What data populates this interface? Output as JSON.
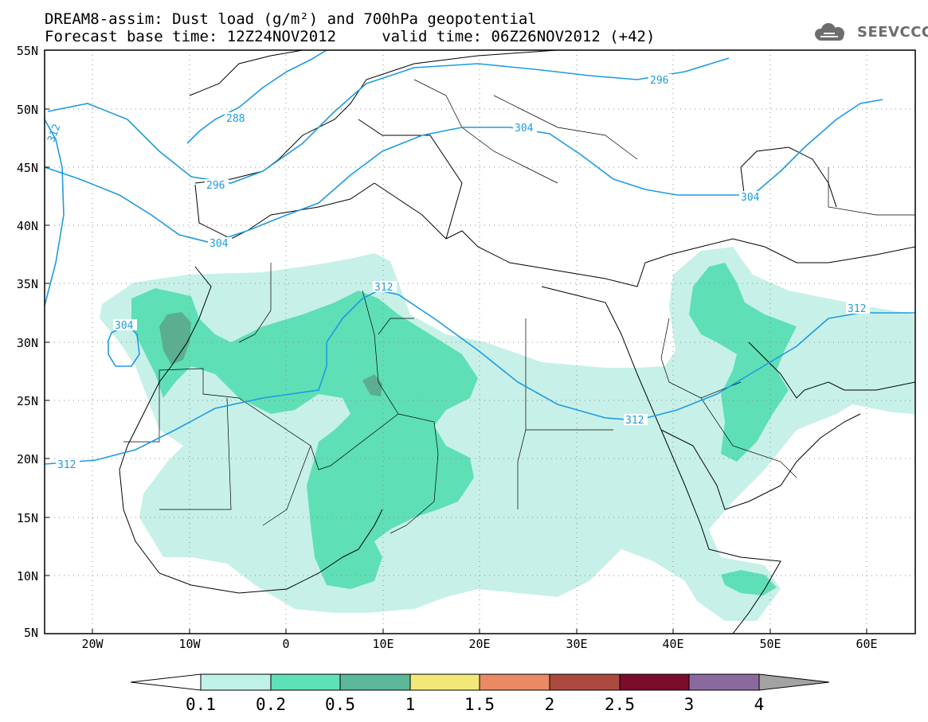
{
  "header": {
    "title_line1": "DREAM8-assim: Dust load (g/m²) and 700hPa geopotential",
    "title_line2": "Forecast base time: 12Z24NOV2012     valid time: 06Z26NOV2012 (+42)",
    "logo_text": "SEEVCCC"
  },
  "map": {
    "lon_range": [
      -25,
      65
    ],
    "lat_range": [
      5,
      55
    ],
    "lat_labels": [
      "55N",
      "50N",
      "45N",
      "40N",
      "35N",
      "30N",
      "25N",
      "20N",
      "15N",
      "10N",
      "5N"
    ],
    "lon_labels": [
      "20W",
      "10W",
      "0",
      "10E",
      "20E",
      "30E",
      "40E",
      "50E",
      "60E"
    ],
    "contour_labels": [
      "288",
      "296",
      "296",
      "304",
      "304",
      "304",
      "304",
      "312",
      "312",
      "312",
      "312",
      "312"
    ]
  },
  "legend": {
    "levels": [
      "0.1",
      "0.2",
      "0.5",
      "1",
      "1.5",
      "2",
      "2.5",
      "3",
      "4"
    ],
    "colors": [
      "#bff2e6",
      "#5ee0b8",
      "#5cb89a",
      "#f2e879",
      "#e98a65",
      "#ad4a3f",
      "#7c0c2c",
      "#8a6a9e"
    ],
    "under_color": "#ffffff",
    "over_color": "#a3a3a3"
  },
  "colors": {
    "contour": "#1e9be0",
    "dust_low": "#c7f1e8",
    "dust_mid": "#5fdfb6",
    "dust_high": "#5bae90"
  }
}
